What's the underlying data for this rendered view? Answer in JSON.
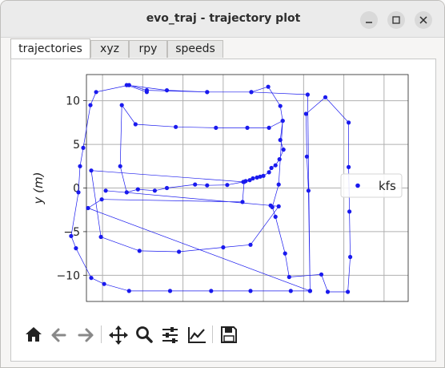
{
  "window": {
    "title": "evo_traj - trajectory plot"
  },
  "tabs": [
    {
      "label": "trajectories",
      "active": true
    },
    {
      "label": "xyz",
      "active": false
    },
    {
      "label": "rpy",
      "active": false
    },
    {
      "label": "speeds",
      "active": false
    }
  ],
  "toolbar": {
    "icons": [
      "home-icon",
      "back-icon",
      "forward-icon",
      "pan-icon",
      "zoom-icon",
      "configure-subplots-icon",
      "edit-axis-icon",
      "save-icon"
    ]
  },
  "chart_data": {
    "type": "scatter",
    "title": "",
    "xlabel": "",
    "ylabel": "y (m)",
    "ylim": [
      -13,
      13
    ],
    "xlim": [
      -10,
      30
    ],
    "yticks": [
      10,
      5,
      0,
      -5,
      -10
    ],
    "ytick_labels": [
      "10",
      "5",
      "0",
      "−5",
      "−10"
    ],
    "grid": true,
    "legend": {
      "position": "right",
      "entries": [
        "kfs"
      ]
    },
    "series": [
      {
        "name": "kfs",
        "color": "#1a1aee",
        "points": [
          [
            -2.5,
            11
          ],
          [
            -5,
            11.8
          ],
          [
            0,
            11.2
          ],
          [
            5,
            11
          ],
          [
            10.5,
            11
          ],
          [
            12.6,
            11.6
          ],
          [
            14.1,
            9.4
          ],
          [
            14.4,
            7.7
          ],
          [
            14.1,
            5.5
          ],
          [
            14.5,
            4.4
          ],
          [
            14.0,
            3.3
          ],
          [
            13.5,
            2.6
          ],
          [
            13.0,
            2.3
          ],
          [
            12.7,
            1.8
          ],
          [
            12.0,
            1.4
          ],
          [
            11.6,
            1.3
          ],
          [
            11.2,
            1.2
          ],
          [
            10.7,
            1.1
          ],
          [
            10.3,
            0.9
          ],
          [
            9.8,
            0.8
          ],
          [
            9.5,
            0.7
          ],
          [
            7.5,
            0.35
          ],
          [
            5,
            0.3
          ],
          [
            3.5,
            0.4
          ],
          [
            0,
            0
          ],
          [
            -1.5,
            -0.3
          ],
          [
            -3.6,
            -0.15
          ],
          [
            -5.0,
            -0.5
          ],
          [
            -5.8,
            2.5
          ],
          [
            -5.6,
            9.5
          ],
          [
            -3.9,
            7.3
          ],
          [
            1.1,
            7.0
          ],
          [
            6.1,
            6.9
          ],
          [
            10.0,
            6.9
          ],
          [
            12.7,
            6.9
          ],
          [
            14.4,
            7.7
          ],
          [
            13.9,
            0.4
          ],
          [
            13.1,
            -2.2
          ],
          [
            13.5,
            -3.3
          ],
          [
            14.7,
            -7.5
          ],
          [
            15.2,
            -10.2
          ],
          [
            19.2,
            -9.9
          ],
          [
            20.0,
            -11.9
          ],
          [
            22.5,
            -11.9
          ],
          [
            22.8,
            -7.9
          ],
          [
            22.7,
            -2.7
          ],
          [
            22.6,
            2.4
          ],
          [
            22.6,
            7.5
          ],
          [
            19.7,
            10.4
          ],
          [
            17.3,
            8.5
          ],
          [
            17.4,
            3.6
          ],
          [
            17.6,
            -0.3
          ],
          [
            17.8,
            -11.8
          ],
          [
            15.4,
            -11.8
          ],
          [
            10.4,
            -11.8
          ],
          [
            5.5,
            -11.8
          ],
          [
            0.4,
            -11.8
          ],
          [
            -4.7,
            -11.8
          ],
          [
            -7.8,
            -11.0
          ],
          [
            -9.4,
            -10.3
          ],
          [
            -11.3,
            -6.9
          ],
          [
            -11.9,
            -5.5
          ],
          [
            -11.0,
            -0.5
          ],
          [
            -10.8,
            2.5
          ],
          [
            -10.4,
            4.6
          ],
          [
            -9.5,
            9.5
          ],
          [
            -8.8,
            11.0
          ],
          [
            -4.7,
            11.8
          ],
          [
            -2.5,
            11.2
          ],
          [
            5.0,
            11.0
          ],
          [
            10.5,
            11.0
          ],
          [
            17.5,
            10.7
          ],
          [
            17.8,
            -11.8
          ],
          [
            -9.8,
            -2.3
          ],
          [
            -8.1,
            -1.3
          ],
          [
            9.4,
            -1.6
          ],
          [
            9.6,
            0.7
          ],
          [
            -9.4,
            2.0
          ],
          [
            -8.2,
            -5.6
          ],
          [
            -3.4,
            -7.2
          ],
          [
            1.5,
            -7.3
          ],
          [
            7.0,
            -6.8
          ],
          [
            10.4,
            -6.5
          ],
          [
            13.9,
            -2.1
          ],
          [
            12.9,
            -2.0
          ],
          [
            -7.6,
            -0.3
          ]
        ]
      }
    ]
  }
}
